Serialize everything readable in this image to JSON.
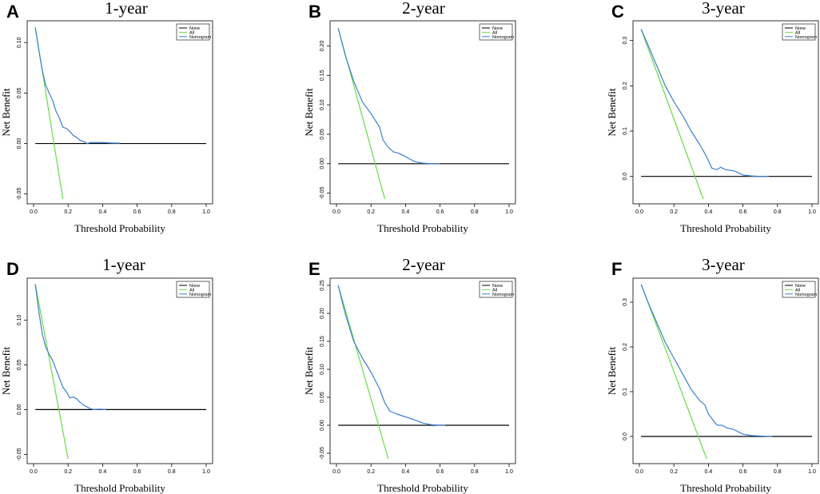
{
  "figure": {
    "colors": {
      "none": "#000000",
      "all": "#66dd44",
      "nomogram": "#3a7fd5"
    }
  },
  "chart_data": [
    {
      "type": "line",
      "panel_label": "A",
      "title": "1-year",
      "xlabel": "Threshold Probability",
      "ylabel": "Net Benefit",
      "xlim": [
        0,
        1
      ],
      "ylim": [
        -0.055,
        0.12
      ],
      "xticks": [
        "0.0",
        "0.2",
        "0.4",
        "0.6",
        "0.8",
        "1.0"
      ],
      "yticks": [
        "-0.05",
        "0.00",
        "0.05",
        "0.10"
      ],
      "legend": [
        "None",
        "All",
        "Nomogram"
      ],
      "series": [
        {
          "name": "None",
          "x": [
            0.01,
            1.0
          ],
          "y": [
            0,
            0
          ]
        },
        {
          "name": "All",
          "x": [
            0.01,
            0.17
          ],
          "y": [
            0.115,
            -0.055
          ]
        },
        {
          "name": "Nomogram",
          "x": [
            0.01,
            0.03,
            0.05,
            0.07,
            0.09,
            0.11,
            0.13,
            0.15,
            0.17,
            0.19,
            0.21,
            0.23,
            0.25,
            0.27,
            0.29,
            0.31,
            0.33,
            0.35,
            0.4,
            0.45,
            0.5
          ],
          "y": [
            0.115,
            0.093,
            0.073,
            0.058,
            0.05,
            0.043,
            0.032,
            0.025,
            0.016,
            0.015,
            0.012,
            0.008,
            0.006,
            0.003,
            0.002,
            0.0,
            0.001,
            0.001,
            0.001,
            0.0005,
            0.0003
          ]
        }
      ]
    },
    {
      "type": "line",
      "panel_label": "B",
      "title": "2-year",
      "xlabel": "Threshold Probability",
      "ylabel": "Net Benefit",
      "xlim": [
        0,
        1
      ],
      "ylim": [
        -0.06,
        0.24
      ],
      "xticks": [
        "0.0",
        "0.2",
        "0.4",
        "0.6",
        "0.8",
        "1.0"
      ],
      "yticks": [
        "-0.05",
        "0.00",
        "0.05",
        "0.10",
        "0.15",
        "0.20"
      ],
      "legend": [
        "None",
        "All",
        "Nomogram"
      ],
      "series": [
        {
          "name": "None",
          "x": [
            0.01,
            1.0
          ],
          "y": [
            0,
            0
          ]
        },
        {
          "name": "All",
          "x": [
            0.01,
            0.28
          ],
          "y": [
            0.23,
            -0.06
          ]
        },
        {
          "name": "Nomogram",
          "x": [
            0.01,
            0.05,
            0.1,
            0.15,
            0.2,
            0.25,
            0.27,
            0.3,
            0.33,
            0.36,
            0.4,
            0.43,
            0.46,
            0.5,
            0.55,
            0.6
          ],
          "y": [
            0.23,
            0.185,
            0.14,
            0.105,
            0.085,
            0.062,
            0.04,
            0.028,
            0.02,
            0.018,
            0.012,
            0.007,
            0.003,
            0.001,
            0.0,
            0.0
          ]
        }
      ]
    },
    {
      "type": "line",
      "panel_label": "C",
      "title": "3-year",
      "xlabel": "Threshold Probability",
      "ylabel": "Net Benefit",
      "xlim": [
        0,
        1
      ],
      "ylim": [
        -0.05,
        0.34
      ],
      "xticks": [
        "0.0",
        "0.2",
        "0.4",
        "0.6",
        "0.8",
        "1.0"
      ],
      "yticks": [
        "0.0",
        "0.1",
        "0.2",
        "0.3"
      ],
      "legend": [
        "None",
        "All",
        "Nomogram"
      ],
      "series": [
        {
          "name": "None",
          "x": [
            0.01,
            1.0
          ],
          "y": [
            0,
            0
          ]
        },
        {
          "name": "All",
          "x": [
            0.01,
            0.37
          ],
          "y": [
            0.325,
            -0.05
          ]
        },
        {
          "name": "Nomogram",
          "x": [
            0.01,
            0.05,
            0.1,
            0.15,
            0.2,
            0.25,
            0.3,
            0.35,
            0.38,
            0.4,
            0.42,
            0.45,
            0.47,
            0.5,
            0.55,
            0.6,
            0.65,
            0.7,
            0.75
          ],
          "y": [
            0.325,
            0.29,
            0.245,
            0.2,
            0.165,
            0.135,
            0.1,
            0.07,
            0.05,
            0.035,
            0.018,
            0.015,
            0.02,
            0.015,
            0.012,
            0.003,
            0.001,
            0.0,
            0.0
          ]
        }
      ]
    },
    {
      "type": "line",
      "panel_label": "D",
      "title": "1-year",
      "xlabel": "Threshold Probability",
      "ylabel": "Net Benefit",
      "xlim": [
        0,
        1
      ],
      "ylim": [
        -0.055,
        0.145
      ],
      "xticks": [
        "0.0",
        "0.2",
        "0.4",
        "0.6",
        "0.8",
        "1.0"
      ],
      "yticks": [
        "-0.05",
        "0.00",
        "0.05",
        "0.10"
      ],
      "legend": [
        "None",
        "All",
        "Nomogram"
      ],
      "series": [
        {
          "name": "None",
          "x": [
            0.01,
            1.0
          ],
          "y": [
            0,
            0
          ]
        },
        {
          "name": "All",
          "x": [
            0.01,
            0.2
          ],
          "y": [
            0.14,
            -0.055
          ]
        },
        {
          "name": "Nomogram",
          "x": [
            0.01,
            0.03,
            0.05,
            0.07,
            0.09,
            0.11,
            0.13,
            0.15,
            0.17,
            0.19,
            0.21,
            0.23,
            0.25,
            0.27,
            0.29,
            0.31,
            0.33,
            0.35,
            0.38,
            0.42
          ],
          "y": [
            0.14,
            0.11,
            0.085,
            0.07,
            0.062,
            0.055,
            0.045,
            0.035,
            0.025,
            0.02,
            0.013,
            0.014,
            0.012,
            0.008,
            0.005,
            0.003,
            0.001,
            0.0,
            0.0005,
            0.0
          ]
        }
      ]
    },
    {
      "type": "line",
      "panel_label": "E",
      "title": "2-year",
      "xlabel": "Threshold Probability",
      "ylabel": "Net Benefit",
      "xlim": [
        0,
        1
      ],
      "ylim": [
        -0.06,
        0.26
      ],
      "xticks": [
        "0.0",
        "0.2",
        "0.4",
        "0.6",
        "0.8",
        "1.0"
      ],
      "yticks": [
        "-0.05",
        "0.00",
        "0.05",
        "0.10",
        "0.15",
        "0.20",
        "0.25"
      ],
      "legend": [
        "None",
        "All",
        "Nomogram"
      ],
      "series": [
        {
          "name": "None",
          "x": [
            0.01,
            1.0
          ],
          "y": [
            0,
            0
          ]
        },
        {
          "name": "All",
          "x": [
            0.01,
            0.3
          ],
          "y": [
            0.25,
            -0.06
          ]
        },
        {
          "name": "Nomogram",
          "x": [
            0.01,
            0.05,
            0.1,
            0.15,
            0.2,
            0.25,
            0.28,
            0.31,
            0.35,
            0.4,
            0.45,
            0.5,
            0.55,
            0.6,
            0.63
          ],
          "y": [
            0.25,
            0.2,
            0.15,
            0.12,
            0.095,
            0.065,
            0.04,
            0.025,
            0.02,
            0.015,
            0.01,
            0.004,
            0.001,
            0.0,
            0.0
          ]
        }
      ]
    },
    {
      "type": "line",
      "panel_label": "F",
      "title": "3-year",
      "xlabel": "Threshold Probability",
      "ylabel": "Net Benefit",
      "xlim": [
        0,
        1
      ],
      "ylim": [
        -0.05,
        0.35
      ],
      "xticks": [
        "0.0",
        "0.2",
        "0.4",
        "0.6",
        "0.8",
        "1.0"
      ],
      "yticks": [
        "0.0",
        "0.1",
        "0.2",
        "0.3"
      ],
      "legend": [
        "None",
        "All",
        "Nomogram"
      ],
      "series": [
        {
          "name": "None",
          "x": [
            0.01,
            1.0
          ],
          "y": [
            0,
            0
          ]
        },
        {
          "name": "All",
          "x": [
            0.01,
            0.39
          ],
          "y": [
            0.34,
            -0.05
          ]
        },
        {
          "name": "Nomogram",
          "x": [
            0.01,
            0.05,
            0.1,
            0.15,
            0.2,
            0.25,
            0.3,
            0.35,
            0.38,
            0.4,
            0.42,
            0.45,
            0.48,
            0.5,
            0.55,
            0.6,
            0.65,
            0.7,
            0.75,
            0.77
          ],
          "y": [
            0.34,
            0.3,
            0.255,
            0.21,
            0.175,
            0.14,
            0.105,
            0.08,
            0.07,
            0.05,
            0.04,
            0.025,
            0.025,
            0.02,
            0.015,
            0.005,
            0.002,
            0.001,
            0.0,
            0.0
          ]
        }
      ]
    }
  ]
}
